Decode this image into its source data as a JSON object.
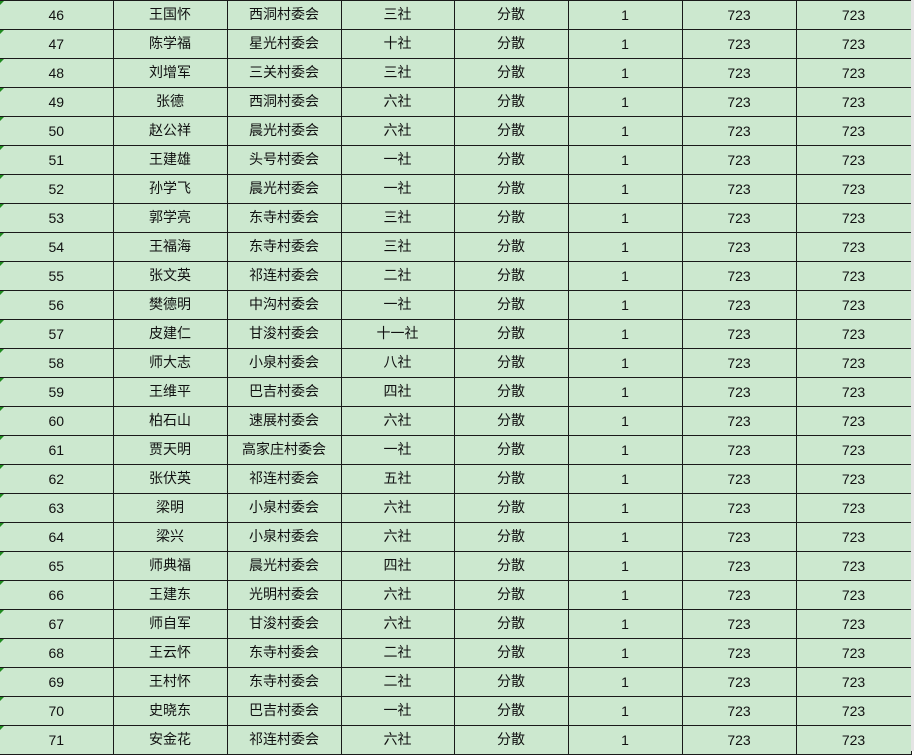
{
  "colors": {
    "cell_background": "#cce8cf",
    "grid_line": "#1a1a1a",
    "error_marker": "#1f8a1f"
  },
  "rows": [
    {
      "no": "46",
      "name": "王国怀",
      "village": "西洞村委会",
      "group": "三社",
      "type": "分散",
      "count": "1",
      "a": "723",
      "b": "723"
    },
    {
      "no": "47",
      "name": "陈学福",
      "village": "星光村委会",
      "group": "十社",
      "type": "分散",
      "count": "1",
      "a": "723",
      "b": "723"
    },
    {
      "no": "48",
      "name": "刘增军",
      "village": "三关村委会",
      "group": "三社",
      "type": "分散",
      "count": "1",
      "a": "723",
      "b": "723"
    },
    {
      "no": "49",
      "name": "张德",
      "village": "西洞村委会",
      "group": "六社",
      "type": "分散",
      "count": "1",
      "a": "723",
      "b": "723"
    },
    {
      "no": "50",
      "name": "赵公祥",
      "village": "晨光村委会",
      "group": "六社",
      "type": "分散",
      "count": "1",
      "a": "723",
      "b": "723"
    },
    {
      "no": "51",
      "name": "王建雄",
      "village": "头号村委会",
      "group": "一社",
      "type": "分散",
      "count": "1",
      "a": "723",
      "b": "723"
    },
    {
      "no": "52",
      "name": "孙学飞",
      "village": "晨光村委会",
      "group": "一社",
      "type": "分散",
      "count": "1",
      "a": "723",
      "b": "723"
    },
    {
      "no": "53",
      "name": "郭学亮",
      "village": "东寺村委会",
      "group": "三社",
      "type": "分散",
      "count": "1",
      "a": "723",
      "b": "723"
    },
    {
      "no": "54",
      "name": "王福海",
      "village": "东寺村委会",
      "group": "三社",
      "type": "分散",
      "count": "1",
      "a": "723",
      "b": "723"
    },
    {
      "no": "55",
      "name": "张文英",
      "village": "祁连村委会",
      "group": "二社",
      "type": "分散",
      "count": "1",
      "a": "723",
      "b": "723"
    },
    {
      "no": "56",
      "name": "樊德明",
      "village": "中沟村委会",
      "group": "一社",
      "type": "分散",
      "count": "1",
      "a": "723",
      "b": "723"
    },
    {
      "no": "57",
      "name": "皮建仁",
      "village": "甘浚村委会",
      "group": "十一社",
      "type": "分散",
      "count": "1",
      "a": "723",
      "b": "723"
    },
    {
      "no": "58",
      "name": "师大志",
      "village": "小泉村委会",
      "group": "八社",
      "type": "分散",
      "count": "1",
      "a": "723",
      "b": "723"
    },
    {
      "no": "59",
      "name": "王维平",
      "village": "巴吉村委会",
      "group": "四社",
      "type": "分散",
      "count": "1",
      "a": "723",
      "b": "723"
    },
    {
      "no": "60",
      "name": "柏石山",
      "village": "速展村委会",
      "group": "六社",
      "type": "分散",
      "count": "1",
      "a": "723",
      "b": "723"
    },
    {
      "no": "61",
      "name": "贾天明",
      "village": "高家庄村委会",
      "group": "一社",
      "type": "分散",
      "count": "1",
      "a": "723",
      "b": "723"
    },
    {
      "no": "62",
      "name": "张伏英",
      "village": "祁连村委会",
      "group": "五社",
      "type": "分散",
      "count": "1",
      "a": "723",
      "b": "723"
    },
    {
      "no": "63",
      "name": "梁明",
      "village": "小泉村委会",
      "group": "六社",
      "type": "分散",
      "count": "1",
      "a": "723",
      "b": "723"
    },
    {
      "no": "64",
      "name": "梁兴",
      "village": "小泉村委会",
      "group": "六社",
      "type": "分散",
      "count": "1",
      "a": "723",
      "b": "723"
    },
    {
      "no": "65",
      "name": "师典福",
      "village": "晨光村委会",
      "group": "四社",
      "type": "分散",
      "count": "1",
      "a": "723",
      "b": "723"
    },
    {
      "no": "66",
      "name": "王建东",
      "village": "光明村委会",
      "group": "六社",
      "type": "分散",
      "count": "1",
      "a": "723",
      "b": "723"
    },
    {
      "no": "67",
      "name": "师自军",
      "village": "甘浚村委会",
      "group": "六社",
      "type": "分散",
      "count": "1",
      "a": "723",
      "b": "723"
    },
    {
      "no": "68",
      "name": "王云怀",
      "village": "东寺村委会",
      "group": "二社",
      "type": "分散",
      "count": "1",
      "a": "723",
      "b": "723"
    },
    {
      "no": "69",
      "name": "王村怀",
      "village": "东寺村委会",
      "group": "二社",
      "type": "分散",
      "count": "1",
      "a": "723",
      "b": "723"
    },
    {
      "no": "70",
      "name": "史晓东",
      "village": "巴吉村委会",
      "group": "一社",
      "type": "分散",
      "count": "1",
      "a": "723",
      "b": "723"
    },
    {
      "no": "71",
      "name": "安金花",
      "village": "祁连村委会",
      "group": "六社",
      "type": "分散",
      "count": "1",
      "a": "723",
      "b": "723"
    }
  ]
}
